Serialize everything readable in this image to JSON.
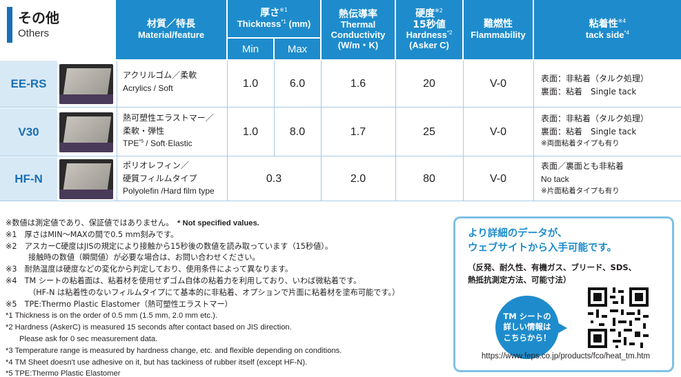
{
  "section": {
    "title_jp": "その他",
    "title_en": "Others"
  },
  "headers": {
    "material_jp": "材質／特長",
    "material_en": "Material/feature",
    "thickness_jp": "厚さ",
    "thickness_jp_sup": "※1",
    "thickness_en": "Thickness",
    "thickness_en_sup": "*1",
    "thickness_unit": "(mm)",
    "min": "Min",
    "max": "Max",
    "conductivity_jp": "熱伝導率",
    "conductivity_en1": "Thermal",
    "conductivity_en2": "Conductivity",
    "conductivity_unit": "(W/m・K)",
    "hardness_jp": "硬度",
    "hardness_jp_sup": "※2",
    "hardness_jp2": "15秒値",
    "hardness_en": "Hardness",
    "hardness_en_sup": "*2",
    "hardness_unit": "(Asker C)",
    "flammability_jp": "難燃性",
    "flammability_en": "Flammability",
    "tack_jp": "粘着性",
    "tack_jp_sup": "※4",
    "tack_en": "tack side",
    "tack_en_sup": "*4"
  },
  "rows": [
    {
      "name": "EE-RS",
      "material_jp": "アクリルゴム／柔軟",
      "material_en": "Acrylics / Soft",
      "material_sup": "",
      "material_en2": "",
      "min": "1.0",
      "max": "6.0",
      "conductivity": "1.6",
      "hardness": "20",
      "flammability": "V-0",
      "tack1": "表面：非粘着（タルク処理）",
      "tack2": "裏面：粘着　Single tack",
      "tack3": ""
    },
    {
      "name": "V30",
      "material_jp": "熱可塑性エラストマー／",
      "material_jp2": "柔軟・弾性",
      "material_en": "TPE",
      "material_sup": "*5",
      "material_en2": " / Soft·Elastic",
      "min": "1.0",
      "max": "8.0",
      "conductivity": "1.7",
      "hardness": "25",
      "flammability": "V-0",
      "tack1": "表面：非粘着（タルク処理）",
      "tack2": "裏面：粘着　Single tack",
      "tack3": "※両面粘着タイプも有り"
    },
    {
      "name": "HF-N",
      "material_jp": "ポリオレフィン／",
      "material_jp2": "硬質フィルムタイプ",
      "material_en": "Polyolefin /Hard film type",
      "material_sup": "",
      "material_en2": "",
      "thickness": "0.3",
      "conductivity": "2.0",
      "hardness": "80",
      "flammability": "V-0",
      "tack1": "表面／裏面とも非粘着",
      "tack2": "No tack",
      "tack3": "※片面粘着タイプも有り"
    }
  ],
  "notes": {
    "n0_jp": "※数値は測定値であり、保証値ではありません。",
    "n0_en": "* Not specified values.",
    "n1": "※1　厚さはMIN～MAXの間で0.5 mm刻みです。",
    "n2": "※2　アスカーC硬度はJISの規定により接触から15秒後の数値を読み取っています（15秒値）。",
    "n2b": "接触時の数値（瞬間値）が必要な場合は、お問い合わせください。",
    "n3": "※3　耐熱温度は硬度などの変化から判定しており、使用条件によって異なります。",
    "n4": "※4　TM シートの粘着面は、粘着材を使用せずゴム自体の粘着力を利用しており、いわば微粘着です。",
    "n4b": "（HF-N は粘着性のないフィルムタイプにて基本的に非粘着、オプションで片面に粘着材を塗布可能です。）",
    "n5": "※5　TPE:Thermo Plastic Elastomer（熱可塑性エラストマー）",
    "e1": "*1  Thickness is on the order of 0.5 mm (1.5 mm, 2.0 mm etc.).",
    "e2": "*2  Hardness (AskerC) is measured 15 seconds after contact based on JIS direction.",
    "e2b": "Please ask for 0 sec measurement data.",
    "e3": "*3  Temperature range is measured by hardness change, etc. and flexible depending on conditions.",
    "e4": "*4  TM Sheet doesn't use adhesive on it, but has tackiness of rubber itself (except HF-N).",
    "e5": "*5  TPE:Thermo Plastic Elastomer"
  },
  "info": {
    "title1": "より詳細のデータが、",
    "title2": "ウェブサイトから入手可能です。",
    "sub1": "（反発、耐久性、有機ガス、ブリード、SDS、",
    "sub2": "熱抵抗測定方法、可能寸法）",
    "bubble1": "TM シートの",
    "bubble2": "詳しい情報は",
    "bubble3": "こちらから！",
    "url": "https://www.feps.co.jp/products/fco/heat_tm.htm"
  },
  "colors": {
    "header": "#1e8ccc",
    "label_bg": "#d8e9f6",
    "accent": "#1a6fb5",
    "border": "#7ec1e6"
  }
}
